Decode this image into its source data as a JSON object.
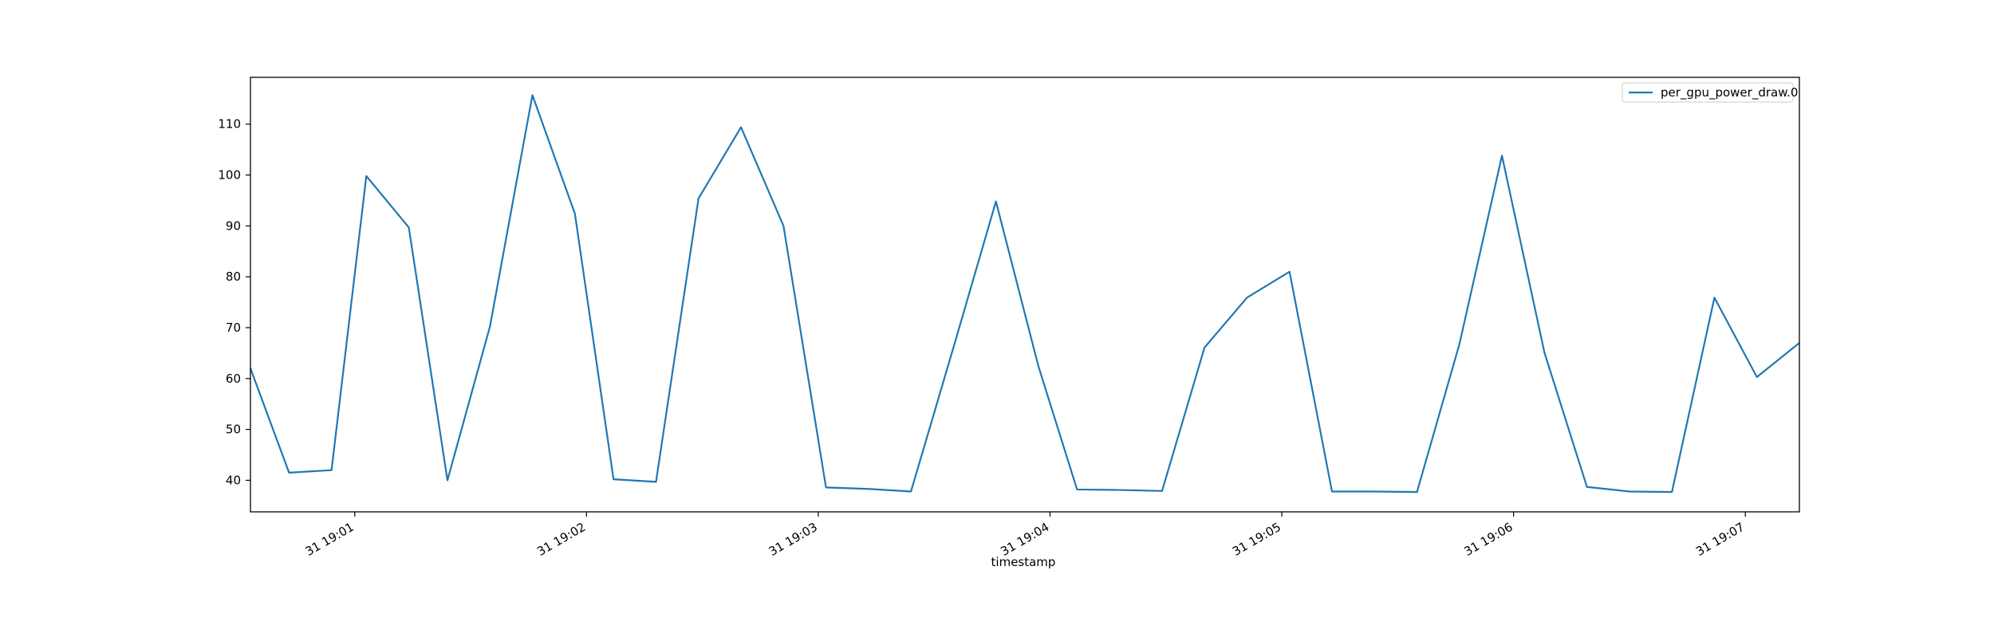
{
  "chart_data": {
    "type": "line",
    "title": "",
    "xlabel": "timestamp",
    "ylabel": "",
    "grid": false,
    "legend_position": "top-right",
    "x_tick_labels": [
      "31 19:01",
      "31 19:02",
      "31 19:03",
      "31 19:04",
      "31 19:05",
      "31 19:06",
      "31 19:07"
    ],
    "x_tick_values": [
      "19:01:00",
      "19:02:00",
      "19:03:00",
      "19:04:00",
      "19:05:00",
      "19:06:00",
      "19:07:00"
    ],
    "xlim": [
      "19:00:33",
      "19:07:14"
    ],
    "y_ticks": [
      40,
      50,
      60,
      70,
      80,
      90,
      100,
      110
    ],
    "ylim": [
      33.8,
      119.2
    ],
    "series": [
      {
        "name": "per_gpu_power_draw.0",
        "color": "#1f77b4",
        "x": [
          "19:00:33",
          "19:00:43",
          "19:00:54",
          "19:01:03",
          "19:01:14",
          "19:01:24",
          "19:01:35",
          "19:01:46",
          "19:01:57",
          "19:02:07",
          "19:02:18",
          "19:02:29",
          "19:02:40",
          "19:02:51",
          "19:03:02",
          "19:03:13",
          "19:03:24",
          "19:03:35",
          "19:03:46",
          "19:03:57",
          "19:04:07",
          "19:04:18",
          "19:04:29",
          "19:04:40",
          "19:04:51",
          "19:05:02",
          "19:05:13",
          "19:05:24",
          "19:05:35",
          "19:05:46",
          "19:05:57",
          "19:06:08",
          "19:06:19",
          "19:06:30",
          "19:06:41",
          "19:06:52",
          "19:07:03",
          "19:07:14"
        ],
        "y": [
          62,
          41.5,
          42,
          99.8,
          89.7,
          40,
          70.2,
          115.7,
          92.4,
          40.2,
          39.7,
          95.4,
          109.4,
          90,
          38.6,
          38.3,
          37.8,
          66.1,
          94.8,
          62.4,
          38.2,
          38.1,
          37.9,
          66.1,
          75.9,
          81,
          37.8,
          37.8,
          37.7,
          66.8,
          103.8,
          65.1,
          38.7,
          37.8,
          37.7,
          75.9,
          60.3,
          67
        ]
      }
    ]
  }
}
